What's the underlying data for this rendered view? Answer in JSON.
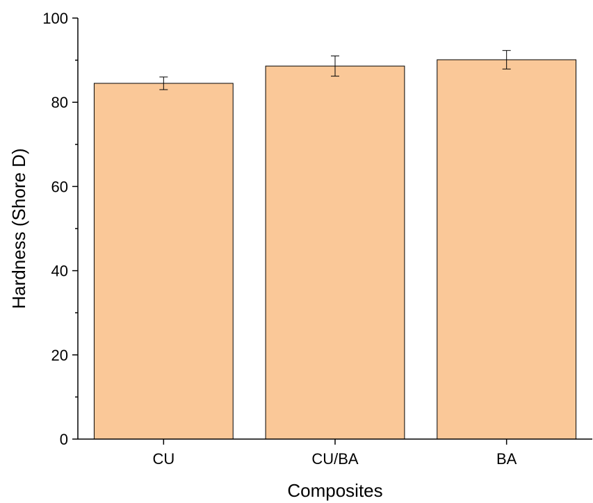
{
  "chart_data": {
    "type": "bar",
    "categories": [
      "CU",
      "CU/BA",
      "BA"
    ],
    "values": [
      84.5,
      88.6,
      90.1
    ],
    "errors": [
      1.5,
      2.4,
      2.2
    ],
    "title": "",
    "xlabel": "Composites",
    "ylabel": "Hardness (Shore D)",
    "ylim": [
      0,
      100
    ],
    "yticks": [
      0,
      20,
      40,
      60,
      80,
      100
    ],
    "grid": false,
    "colors": {
      "bar_fill": "#FAC898",
      "bar_edge": "#000000"
    }
  }
}
